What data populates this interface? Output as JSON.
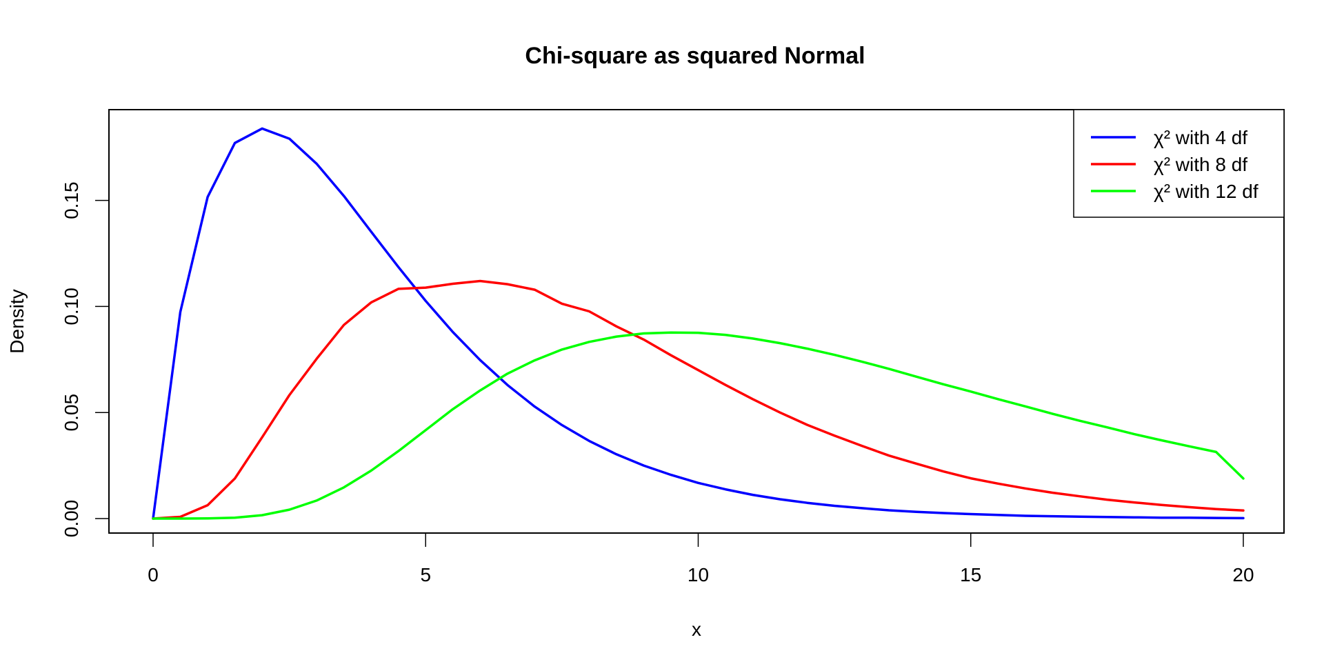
{
  "chart_data": {
    "type": "line",
    "title": "Chi-square as squared Normal",
    "xlabel": "x",
    "ylabel": "Density",
    "xlim": [
      0,
      20
    ],
    "ylim": [
      0,
      0.185
    ],
    "xticks": [
      0,
      5,
      10,
      15,
      20
    ],
    "xtick_labels": [
      "0",
      "5",
      "10",
      "15",
      "20"
    ],
    "yticks": [
      0,
      0.05,
      0.1,
      0.15
    ],
    "ytick_labels": [
      "0.00",
      "0.05",
      "0.10",
      "0.15"
    ],
    "grid": false,
    "legend_position": "top-right",
    "x": [
      0.0,
      0.5,
      1.0,
      1.5,
      2.0,
      2.5,
      3.0,
      3.5,
      4.0,
      4.5,
      5.0,
      5.5,
      6.0,
      6.5,
      7.0,
      7.5,
      8.0,
      8.5,
      9.0,
      9.5,
      10.0,
      10.5,
      11.0,
      11.5,
      12.0,
      12.5,
      13.0,
      13.5,
      14.0,
      14.5,
      15.0,
      15.5,
      16.0,
      16.5,
      17.0,
      17.5,
      18.0,
      18.5,
      19.0,
      19.5,
      20.0
    ],
    "series": [
      {
        "name": "χ² with 4 df",
        "color": "#0000ff",
        "values": [
          0.0,
          0.0974,
          0.1516,
          0.1771,
          0.1839,
          0.1791,
          0.1673,
          0.1521,
          0.1353,
          0.1186,
          0.1026,
          0.0879,
          0.0747,
          0.063,
          0.0528,
          0.0441,
          0.0366,
          0.0303,
          0.025,
          0.0206,
          0.0168,
          0.0138,
          0.0112,
          0.0091,
          0.0074,
          0.006,
          0.0049,
          0.0039,
          0.0032,
          0.0026,
          0.0021,
          0.0017,
          0.0013,
          0.0011,
          0.0009,
          0.0007,
          0.0006,
          0.0004,
          0.0004,
          0.0003,
          0.0002
        ]
      },
      {
        "name": "χ² with 8 df",
        "color": "#ff0000",
        "values": [
          0.0,
          0.0008,
          0.0063,
          0.0189,
          0.0383,
          0.0582,
          0.0753,
          0.0913,
          0.1019,
          0.1083,
          0.1089,
          0.1107,
          0.112,
          0.1105,
          0.1079,
          0.1013,
          0.0977,
          0.0906,
          0.0844,
          0.077,
          0.07,
          0.063,
          0.0563,
          0.05,
          0.0442,
          0.0391,
          0.0343,
          0.0297,
          0.0259,
          0.0222,
          0.019,
          0.0165,
          0.0142,
          0.0122,
          0.0105,
          0.0089,
          0.0076,
          0.0064,
          0.0054,
          0.0045,
          0.0038
        ]
      },
      {
        "name": "χ² with 12 df",
        "color": "#00ff00",
        "values": [
          0.0,
          0.0,
          0.0001,
          0.0004,
          0.0016,
          0.0042,
          0.0085,
          0.0147,
          0.0226,
          0.0318,
          0.0417,
          0.0516,
          0.0604,
          0.0683,
          0.0746,
          0.0797,
          0.0833,
          0.0858,
          0.0873,
          0.0877,
          0.0876,
          0.0866,
          0.0849,
          0.0827,
          0.0801,
          0.0772,
          0.074,
          0.0706,
          0.0669,
          0.0633,
          0.0599,
          0.0563,
          0.0529,
          0.0494,
          0.0461,
          0.043,
          0.0398,
          0.0369,
          0.0341,
          0.0314,
          0.0189
        ]
      }
    ]
  }
}
